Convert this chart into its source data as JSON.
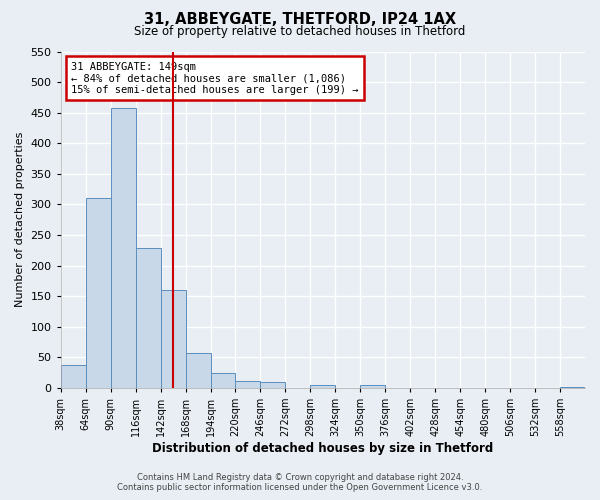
{
  "title": "31, ABBEYGATE, THETFORD, IP24 1AX",
  "subtitle": "Size of property relative to detached houses in Thetford",
  "xlabel": "Distribution of detached houses by size in Thetford",
  "ylabel": "Number of detached properties",
  "bin_labels": [
    "38sqm",
    "64sqm",
    "90sqm",
    "116sqm",
    "142sqm",
    "168sqm",
    "194sqm",
    "220sqm",
    "246sqm",
    "272sqm",
    "298sqm",
    "324sqm",
    "350sqm",
    "376sqm",
    "402sqm",
    "428sqm",
    "454sqm",
    "480sqm",
    "506sqm",
    "532sqm",
    "558sqm"
  ],
  "bar_values": [
    38,
    311,
    457,
    229,
    160,
    57,
    25,
    12,
    9,
    0,
    5,
    0,
    5,
    0,
    0,
    0,
    0,
    0,
    0,
    0,
    2
  ],
  "bar_color": "#c8d8e8",
  "bar_edgecolor": "#5a8fc0",
  "property_line_x": 4.5,
  "bin_width": 1,
  "ylim": [
    0,
    550
  ],
  "yticks": [
    0,
    50,
    100,
    150,
    200,
    250,
    300,
    350,
    400,
    450,
    500,
    550
  ],
  "annotation_title": "31 ABBEYGATE: 149sqm",
  "annotation_line1": "← 84% of detached houses are smaller (1,086)",
  "annotation_line2": "15% of semi-detached houses are larger (199) →",
  "footer_line1": "Contains HM Land Registry data © Crown copyright and database right 2024.",
  "footer_line2": "Contains public sector information licensed under the Open Government Licence v3.0.",
  "bg_color": "#e8eef4",
  "plot_bg_color": "#e8eef4",
  "grid_color": "#ffffff",
  "annotation_box_color": "#ffffff",
  "annotation_box_edgecolor": "#cc0000"
}
